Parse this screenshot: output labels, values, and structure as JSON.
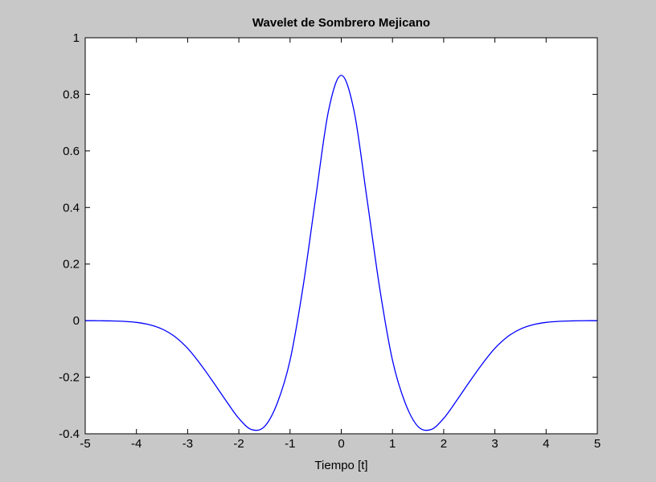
{
  "chart_data": {
    "type": "line",
    "title": "Wavelet de Sombrero Mejicano",
    "xlabel": "Tiempo [t]",
    "ylabel": "",
    "xlim": [
      -5,
      5
    ],
    "ylim": [
      -0.4,
      1
    ],
    "xticks": [
      -5,
      -4,
      -3,
      -2,
      -1,
      0,
      1,
      2,
      3,
      4,
      5
    ],
    "xtick_labels": [
      "-5",
      "-4",
      "-3",
      "-2",
      "-1",
      "0",
      "1",
      "2",
      "3",
      "4",
      "5"
    ],
    "yticks": [
      -0.4,
      -0.2,
      0,
      0.2,
      0.4,
      0.6,
      0.8,
      1
    ],
    "ytick_labels": [
      "-0.4",
      "-0.2",
      "0",
      "0.2",
      "0.4",
      "0.6",
      "0.8",
      "1"
    ],
    "grid": false,
    "legend": "none",
    "colors": {
      "figure_background": "#c8c8c8",
      "axes_background": "#ffffff",
      "line": "#0000ff",
      "axes": "#000000"
    },
    "series": [
      {
        "color": "#0000ff",
        "x": [
          -5,
          -4.75,
          -4.5,
          -4.25,
          -4,
          -3.75,
          -3.5,
          -3.25,
          -3,
          -2.75,
          -2.5,
          -2.25,
          -2,
          -1.75,
          -1.5,
          -1.25,
          -1,
          -0.75,
          -0.5,
          -0.25,
          0,
          0.25,
          0.5,
          0.75,
          1,
          1.25,
          1.5,
          1.75,
          2,
          2.25,
          2.5,
          2.75,
          3,
          3.25,
          3.5,
          3.75,
          4,
          4.25,
          4.5,
          4.75,
          5
        ],
        "y": [
          -0.0001,
          -0.0003,
          -0.0009,
          -0.0025,
          -0.0062,
          -0.0142,
          -0.0296,
          -0.0564,
          -0.0979,
          -0.1539,
          -0.2172,
          -0.2832,
          -0.3456,
          -0.3852,
          -0.3745,
          -0.2916,
          -0.1399,
          0.1154,
          0.4337,
          0.7409,
          0.8673,
          0.7409,
          0.4337,
          0.1154,
          -0.1399,
          -0.2916,
          -0.3745,
          -0.3852,
          -0.3456,
          -0.2832,
          -0.2172,
          -0.1539,
          -0.0979,
          -0.0564,
          -0.0296,
          -0.0142,
          -0.0062,
          -0.0025,
          -0.0009,
          -0.0003,
          -0.0001
        ]
      }
    ]
  }
}
